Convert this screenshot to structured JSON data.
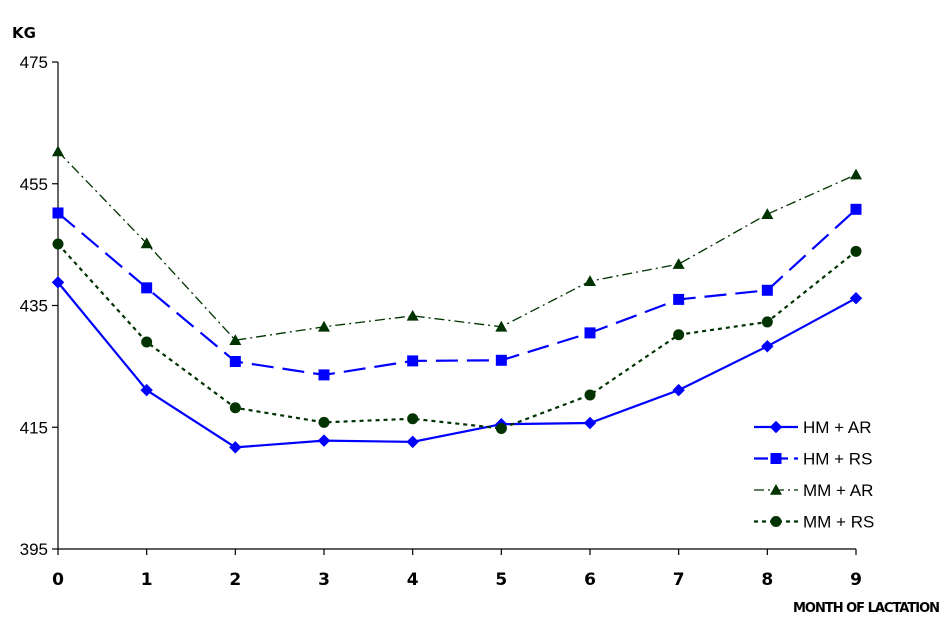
{
  "chart_data": {
    "type": "line",
    "ylabel": "KG",
    "xlabel": "MONTH OF LACTATION",
    "ylim": [
      395,
      475
    ],
    "yticks": [
      395,
      415,
      435,
      455,
      475
    ],
    "x": [
      0,
      1,
      2,
      3,
      4,
      5,
      6,
      7,
      8,
      9
    ],
    "grid": false,
    "legend_position": "bottom-right",
    "series": [
      {
        "name": "HM + AR",
        "color": "#0000ff",
        "marker": "diamond",
        "dash": "solid",
        "values": [
          438.8,
          421.1,
          411.7,
          412.8,
          412.6,
          415.5,
          415.7,
          421.1,
          428.3,
          436.2
        ]
      },
      {
        "name": "HM + RS",
        "color": "#0000ff",
        "marker": "square",
        "dash": "dashed",
        "values": [
          450.2,
          437.9,
          425.8,
          423.6,
          425.9,
          426.0,
          430.5,
          436.0,
          437.5,
          450.8
        ]
      },
      {
        "name": "MM + AR",
        "color": "#003300",
        "marker": "triangle",
        "dash": "dashdot",
        "values": [
          460.3,
          445.2,
          429.3,
          431.5,
          433.3,
          431.5,
          439.0,
          441.8,
          450.0,
          456.5
        ]
      },
      {
        "name": "MM + RS",
        "color": "#003300",
        "marker": "circle",
        "dash": "dotted",
        "values": [
          445.1,
          429.0,
          418.2,
          415.8,
          416.4,
          414.8,
          420.3,
          430.2,
          432.3,
          443.9
        ]
      }
    ]
  }
}
